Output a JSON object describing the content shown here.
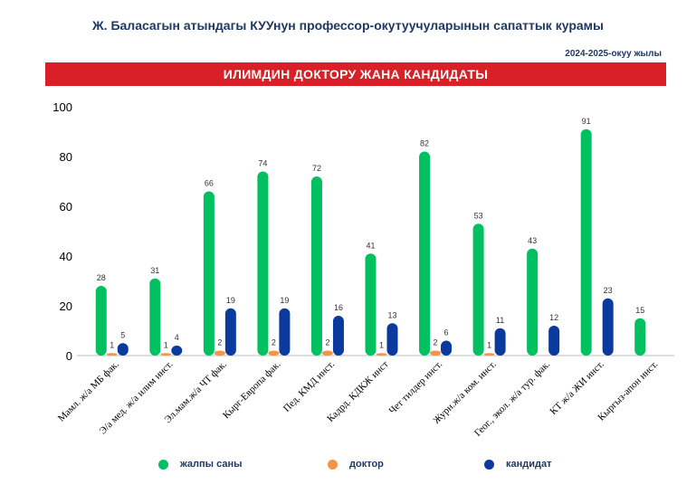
{
  "header": {
    "title": "Ж. Баласагын атындагы КУУнун профессор-окутуучуларынын  сапаттык курамы",
    "year": "2024-2025-окуу жылы",
    "banner": "ИЛИМДИН ДОКТОРУ  ЖАНА  КАНДИДАТЫ"
  },
  "chart_data": {
    "type": "bar",
    "title": "ИЛИМДИН ДОКТОРУ  ЖАНА  КАНДИДАТЫ",
    "categories": [
      "Мамл. ж/а МБ фак.",
      "Э/а мед. ж/а илим инст.",
      "Эл.мам.ж/а ЧТ фак.",
      "Кырг-Европа фак.",
      "Пед. КМД инст.",
      "Кадрд. КДКЖ инст",
      "Чет тилдер инст.",
      "Журн.ж/а ком. инст.",
      "Геог., экол. ж/а тур. фак.",
      "КТ ж/а ЖИ инст.",
      "Кыргыз-апон инст."
    ],
    "series": [
      {
        "name": "жалпы саны",
        "color": "#00c060",
        "values": [
          28,
          31,
          66,
          74,
          72,
          41,
          82,
          53,
          43,
          91,
          15
        ]
      },
      {
        "name": "доктор",
        "color": "#f4944a",
        "values": [
          1,
          1,
          2,
          2,
          2,
          1,
          2,
          1,
          null,
          null,
          null
        ]
      },
      {
        "name": "кандидат",
        "color": "#0a3a9e",
        "values": [
          5,
          4,
          19,
          19,
          16,
          13,
          6,
          11,
          12,
          23,
          null
        ]
      }
    ],
    "ylim": [
      0,
      100
    ],
    "yticks": [
      0,
      20,
      40,
      60,
      80,
      100
    ],
    "grid": false,
    "legend_position": "bottom"
  }
}
